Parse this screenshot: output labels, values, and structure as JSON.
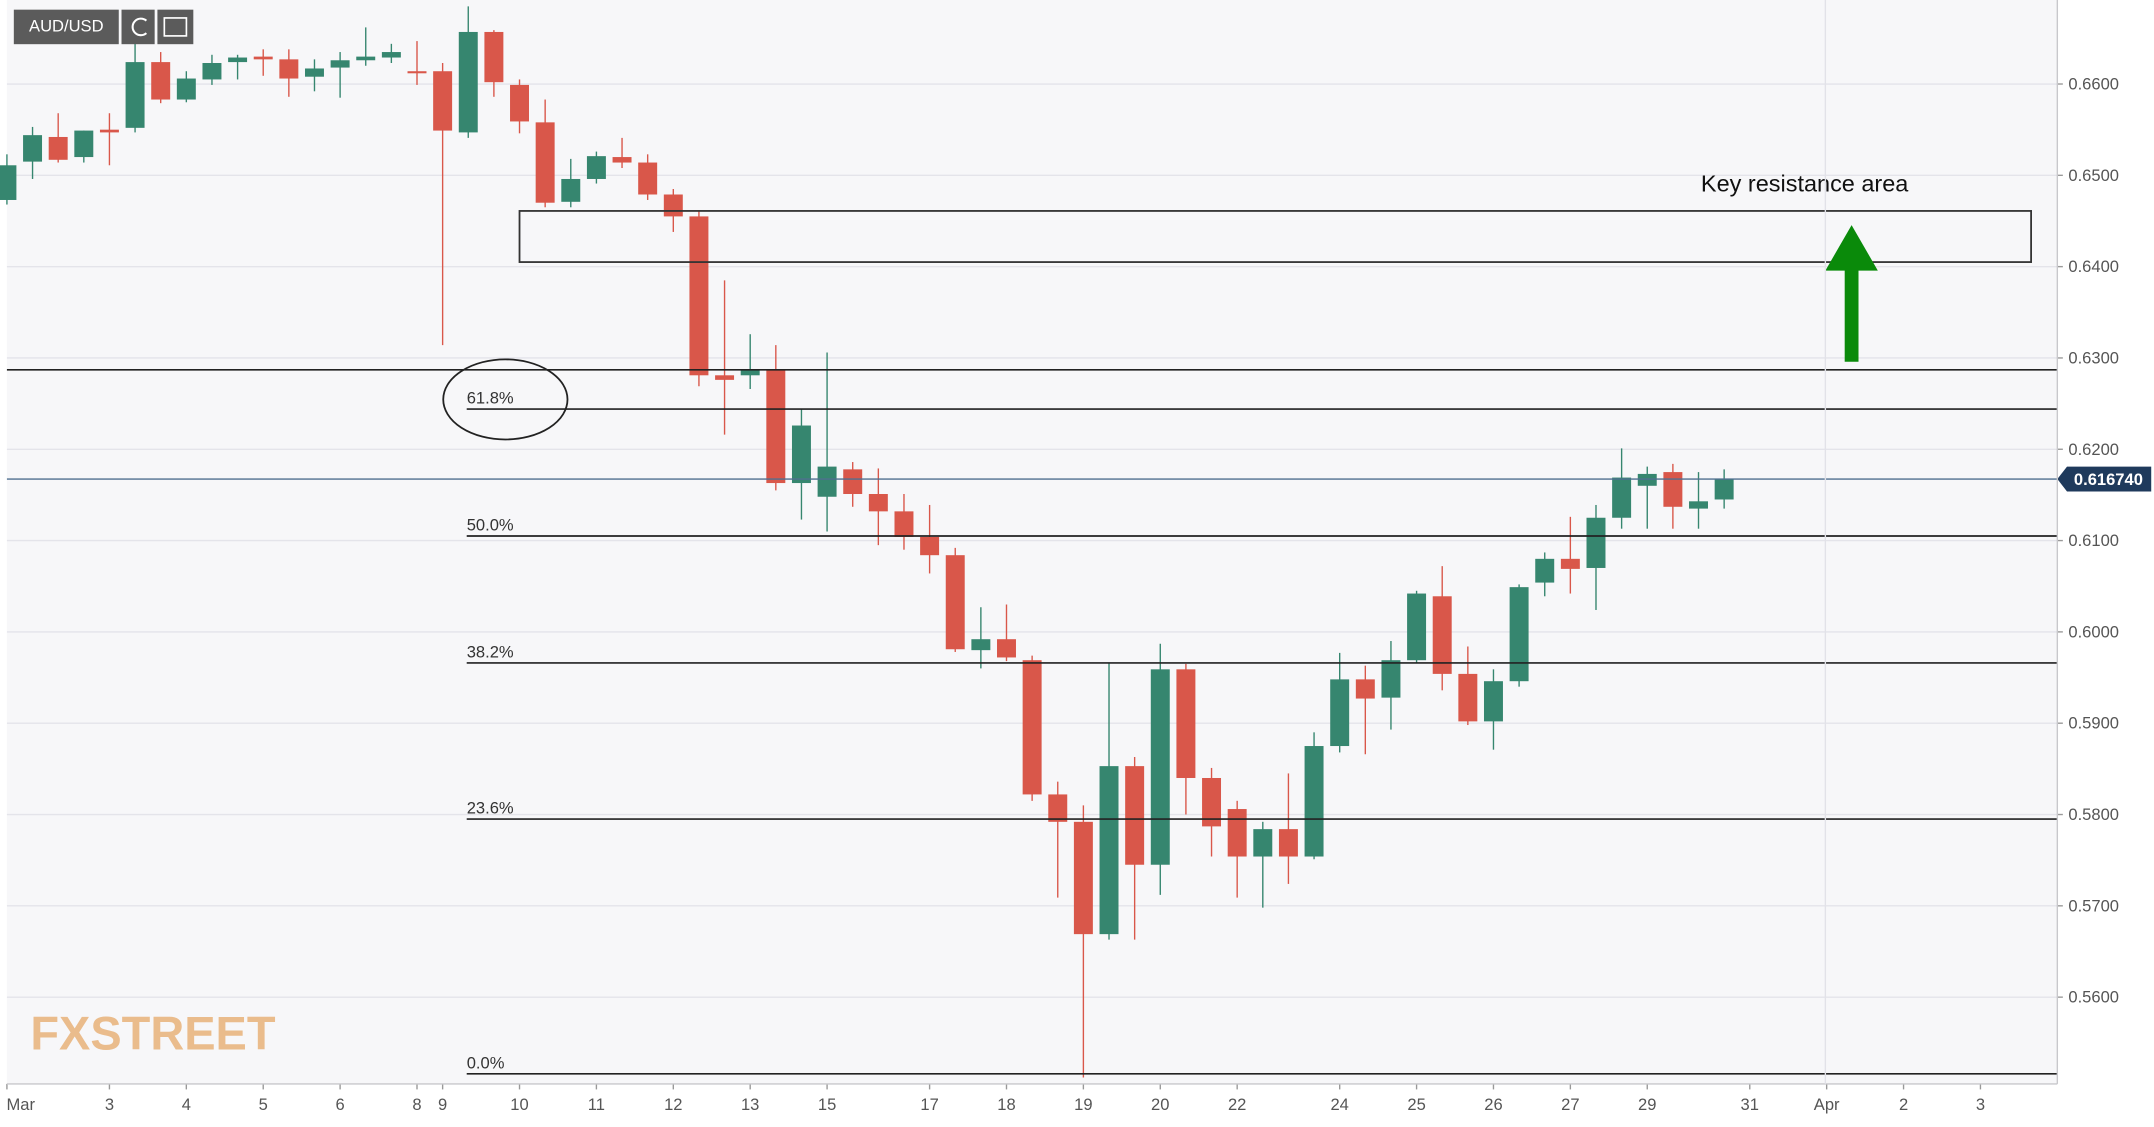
{
  "chart_data": {
    "type": "candlestick",
    "symbol": "AUD/USD",
    "logo": "FXSTREET",
    "up_color": "#36866f",
    "down_color": "#d9574a",
    "grid": true,
    "categories": [
      "Mar",
      null,
      null,
      null,
      "3",
      null,
      null,
      "4",
      null,
      null,
      "5",
      null,
      null,
      "6",
      null,
      null,
      "8",
      "9",
      null,
      null,
      "10",
      null,
      null,
      "11",
      null,
      null,
      "12",
      null,
      null,
      "13",
      null,
      null,
      "15",
      null,
      null,
      null,
      "17",
      null,
      null,
      "18",
      null,
      null,
      "19",
      null,
      null,
      "20",
      null,
      null,
      "22",
      null,
      null,
      null,
      "24",
      null,
      null,
      "25",
      null,
      null,
      "26",
      null,
      null,
      "27",
      null,
      null,
      "29",
      null,
      null,
      null,
      "31",
      null,
      null,
      "Apr",
      null,
      null,
      "2",
      null,
      null,
      "3",
      null,
      null
    ],
    "open": [
      0.6473,
      0.6515,
      0.6542,
      0.652,
      0.655,
      0.6552,
      0.6624,
      0.6583,
      0.6605,
      0.6624,
      0.663,
      0.6627,
      0.6608,
      0.6618,
      0.6626,
      0.6629,
      0.6614,
      0.6614,
      0.6547,
      0.6657,
      0.6599,
      0.6558,
      0.6471,
      0.6496,
      0.652,
      0.6514,
      0.6479,
      0.6455,
      0.6281,
      0.6281,
      0.6287,
      0.6163,
      0.6148,
      0.6178,
      0.6151,
      0.6132,
      0.6104,
      0.6084,
      0.598,
      0.5992,
      0.5969,
      0.5822,
      0.5792,
      0.5669,
      0.5853,
      0.5745,
      0.5959,
      0.584,
      0.5806,
      0.5754,
      0.5784,
      0.5754,
      0.5875,
      0.5948,
      0.5928,
      0.5969,
      0.6039,
      0.5954,
      0.5902,
      0.5946,
      0.6054,
      0.608,
      0.607,
      0.6125,
      0.616,
      0.6175,
      0.6135,
      0.6145,
      null,
      null,
      null,
      null,
      null,
      null,
      null,
      null,
      null,
      null,
      null,
      null
    ],
    "high": [
      0.6523,
      0.6553,
      0.6568,
      0.6549,
      0.6568,
      0.6647,
      0.6635,
      0.6614,
      0.6632,
      0.6632,
      0.6638,
      0.6638,
      0.6627,
      0.6635,
      0.6662,
      0.6644,
      0.6647,
      0.6623,
      0.6685,
      0.6659,
      0.6605,
      0.6583,
      0.6518,
      0.6526,
      0.6541,
      0.6523,
      0.6485,
      0.6461,
      0.6385,
      0.6326,
      0.6314,
      0.6244,
      0.6306,
      0.6186,
      0.6179,
      0.6151,
      0.6139,
      0.6092,
      0.6027,
      0.603,
      0.5974,
      0.5836,
      0.581,
      0.5966,
      0.5863,
      0.5987,
      0.5965,
      0.5851,
      0.5815,
      0.5792,
      0.5845,
      0.589,
      0.5977,
      0.5963,
      0.599,
      0.6045,
      0.6072,
      0.5984,
      0.5959,
      0.6052,
      0.6087,
      0.6126,
      0.6139,
      0.6201,
      0.6181,
      0.6184,
      0.6175,
      0.6178,
      null,
      null,
      null,
      null,
      null,
      null,
      null,
      null,
      null,
      null,
      null,
      null
    ],
    "low": [
      0.6468,
      0.6496,
      0.6514,
      0.6514,
      0.6511,
      0.6547,
      0.6579,
      0.658,
      0.6599,
      0.6605,
      0.6609,
      0.6586,
      0.6592,
      0.6585,
      0.662,
      0.6623,
      0.6599,
      0.6314,
      0.6541,
      0.6586,
      0.6546,
      0.6465,
      0.6465,
      0.6491,
      0.6508,
      0.6473,
      0.6438,
      0.6269,
      0.6216,
      0.6266,
      0.6155,
      0.6123,
      0.611,
      0.6137,
      0.6095,
      0.609,
      0.6064,
      0.5978,
      0.596,
      0.5968,
      0.5815,
      0.5709,
      0.5512,
      0.5663,
      0.5663,
      0.5712,
      0.58,
      0.5754,
      0.5709,
      0.5698,
      0.5724,
      0.5751,
      0.5868,
      0.5866,
      0.5893,
      0.5966,
      0.5936,
      0.5898,
      0.5871,
      0.594,
      0.6039,
      0.6042,
      0.6024,
      0.6113,
      0.6113,
      0.6113,
      0.6113,
      0.6135,
      null,
      null,
      null,
      null,
      null,
      null,
      null,
      null,
      null,
      null,
      null,
      null
    ],
    "close": [
      0.6511,
      0.6544,
      0.6517,
      0.6549,
      0.6547,
      0.6624,
      0.6583,
      0.6606,
      0.6623,
      0.6629,
      0.6627,
      0.6606,
      0.6617,
      0.6626,
      0.663,
      0.6635,
      0.6612,
      0.6549,
      0.6657,
      0.6602,
      0.6559,
      0.647,
      0.6496,
      0.6521,
      0.6514,
      0.6479,
      0.6455,
      0.6281,
      0.6276,
      0.6287,
      0.6163,
      0.6226,
      0.6181,
      0.6151,
      0.6132,
      0.6104,
      0.6084,
      0.5981,
      0.5992,
      0.5972,
      0.5822,
      0.5792,
      0.5669,
      0.5853,
      0.5745,
      0.5959,
      0.584,
      0.5787,
      0.5754,
      0.5784,
      0.5754,
      0.5875,
      0.5948,
      0.5927,
      0.5969,
      0.6042,
      0.5954,
      0.5902,
      0.5946,
      0.6049,
      0.608,
      0.6069,
      0.6125,
      0.6169,
      0.6173,
      0.6137,
      0.6143,
      0.6167,
      null,
      null,
      null,
      null,
      null,
      null,
      null,
      null,
      null,
      null,
      null,
      null
    ],
    "ylim": [
      0.5505,
      0.6692
    ],
    "yticks": [
      {
        "value": 0.56,
        "label": "0.5600"
      },
      {
        "value": 0.57,
        "label": "0.5700"
      },
      {
        "value": 0.58,
        "label": "0.5800"
      },
      {
        "value": 0.59,
        "label": "0.5900"
      },
      {
        "value": 0.6,
        "label": "0.6000"
      },
      {
        "value": 0.61,
        "label": "0.6100"
      },
      {
        "value": 0.62,
        "label": "0.6200"
      },
      {
        "value": 0.63,
        "label": "0.6300"
      },
      {
        "value": 0.64,
        "label": "0.6400"
      },
      {
        "value": 0.65,
        "label": "0.6500"
      },
      {
        "value": 0.66,
        "label": "0.6600"
      }
    ],
    "last_price": {
      "value": 0.61674,
      "label": "0.616740"
    },
    "fib_levels": [
      {
        "name": "61.8%",
        "value": 0.6244
      },
      {
        "name": "50.0%",
        "value": 0.6105
      },
      {
        "name": "38.2%",
        "value": 0.5966
      },
      {
        "name": "23.6%",
        "value": 0.5795
      },
      {
        "name": "0.0%",
        "value": 0.5516
      }
    ],
    "horizontal_lines": [
      0.6287
    ],
    "resistance_zone": {
      "label": "Key resistance area",
      "from": 0.6405,
      "to": 0.6461
    }
  }
}
